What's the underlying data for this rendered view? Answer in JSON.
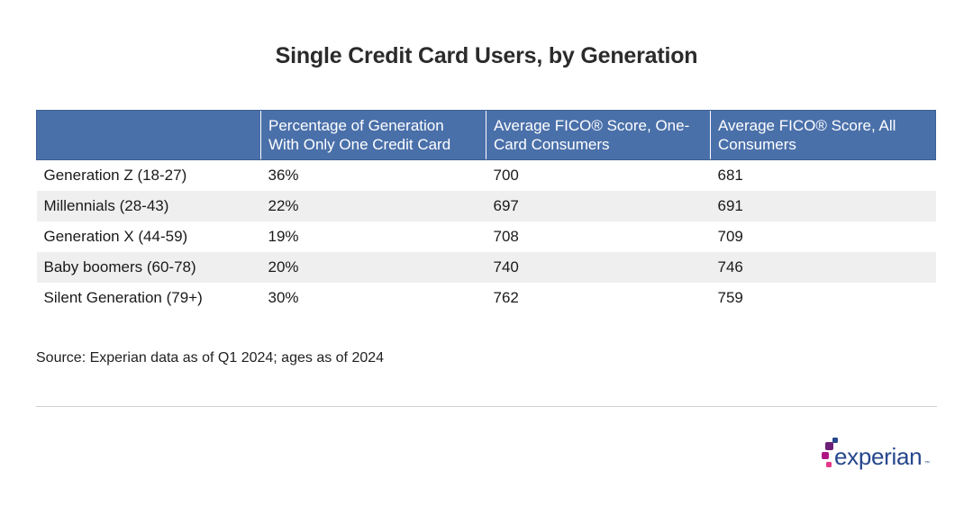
{
  "title": "Single Credit Card Users, by Generation",
  "chart_data": {
    "type": "table",
    "title": "Single Credit Card Users, by Generation",
    "columns": [
      "",
      "Percentage of Generation With Only One Credit Card",
      "Average FICO® Score, One-Card Consumers",
      "Average FICO® Score, All Consumers"
    ],
    "rows": [
      [
        "Generation Z (18-27)",
        "36%",
        "700",
        "681"
      ],
      [
        "Millennials (28-43)",
        "22%",
        "697",
        "691"
      ],
      [
        "Generation X (44-59)",
        "19%",
        "708",
        "709"
      ],
      [
        "Baby boomers (60-78)",
        "20%",
        "740",
        "746"
      ],
      [
        "Silent Generation (79+)",
        "30%",
        "762",
        "759"
      ]
    ]
  },
  "source": "Source: Experian data as of Q1 2024; ages as of 2024",
  "logo": {
    "text": "experian",
    "trademark": "™",
    "icon": "experian-dots-icon",
    "colors": {
      "text": "#26478d",
      "navy": "#26478d",
      "purple": "#6d2077",
      "magenta": "#af1685",
      "pink": "#e63888"
    }
  },
  "colors": {
    "header_bg": "#4a70aa",
    "header_text": "#ffffff",
    "stripe_bg": "#efefef",
    "divider": "#cfcfcf"
  }
}
